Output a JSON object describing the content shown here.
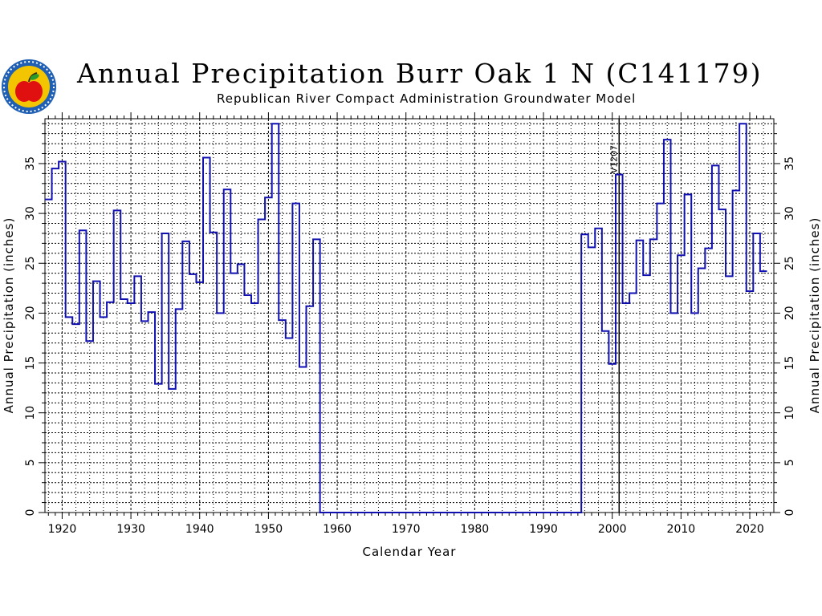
{
  "header": {
    "title": "Annual Precipitation Burr Oak 1 N (C141179)",
    "subtitle": "Republican River Compact Administration Groundwater Model"
  },
  "colors": {
    "series": "#1010b0",
    "grid": "#000000",
    "logo_ring": "#1f5fb4",
    "logo_inner": "#f2c500",
    "logo_apple": "#e01010"
  },
  "logo": {
    "icon": "apple-seal-logo"
  },
  "chart_data": {
    "type": "line",
    "step": true,
    "title": "Annual Precipitation Burr Oak 1 N (C141179)",
    "subtitle": "Republican River Compact Administration Groundwater Model",
    "xlabel": "Calendar Year",
    "ylabel": "Annual Precipitation (inches)",
    "xlim": [
      1917.5,
      2023.5
    ],
    "ylim": [
      0,
      39.5
    ],
    "grid": true,
    "x_ticks": [
      1920,
      1930,
      1940,
      1950,
      1960,
      1970,
      1980,
      1990,
      2000,
      2010,
      2020
    ],
    "y_ticks": [
      0,
      5,
      10,
      15,
      20,
      25,
      30,
      35
    ],
    "annotation": {
      "label": "V1207",
      "x": 2001
    },
    "series": [
      {
        "x": [
          1918,
          1919,
          1920,
          1921,
          1922,
          1923,
          1924,
          1925,
          1926,
          1927,
          1928,
          1929,
          1930,
          1931,
          1932,
          1933,
          1934,
          1935,
          1936,
          1937,
          1938,
          1939,
          1940,
          1941,
          1942,
          1943,
          1944,
          1945,
          1946,
          1947,
          1948,
          1949,
          1950,
          1951,
          1952,
          1953,
          1954,
          1955,
          1956,
          1957,
          1958,
          1959,
          1960,
          1961,
          1962,
          1963,
          1964,
          1965,
          1966,
          1967,
          1968,
          1969,
          1970,
          1971,
          1972,
          1973,
          1974,
          1975,
          1976,
          1977,
          1978,
          1979,
          1980,
          1981,
          1982,
          1983,
          1984,
          1985,
          1986,
          1987,
          1988,
          1989,
          1990,
          1991,
          1992,
          1993,
          1994,
          1995,
          1996,
          1997,
          1998,
          1999,
          2000,
          2001,
          2002,
          2003,
          2004,
          2005,
          2006,
          2007,
          2008,
          2009,
          2010,
          2011,
          2012,
          2013,
          2014,
          2015,
          2016,
          2017,
          2018,
          2019,
          2020,
          2021,
          2022
        ],
        "values": [
          31.4,
          34.5,
          35.2,
          19.6,
          18.9,
          28.3,
          17.2,
          23.2,
          19.6,
          21.1,
          30.3,
          21.4,
          21.0,
          23.7,
          19.2,
          20.1,
          12.9,
          28.0,
          12.4,
          20.4,
          27.2,
          23.9,
          23.1,
          35.6,
          28.1,
          20.0,
          32.4,
          24.0,
          24.9,
          21.8,
          21.0,
          29.4,
          31.6,
          39.0,
          19.3,
          17.5,
          31.0,
          14.6,
          20.7,
          27.4,
          0,
          0,
          0,
          0,
          0,
          0,
          0,
          0,
          0,
          0,
          0,
          0,
          0,
          0,
          0,
          0,
          0,
          0,
          0,
          0,
          0,
          0,
          0,
          0,
          0,
          0,
          0,
          0,
          0,
          0,
          0,
          0,
          0,
          0,
          0,
          0,
          0,
          0,
          27.9,
          26.6,
          28.5,
          18.2,
          14.9,
          33.9,
          21.0,
          22.0,
          27.3,
          23.8,
          27.4,
          31.0,
          37.4,
          20.0,
          25.8,
          31.9,
          20.0,
          24.5,
          26.5,
          34.8,
          30.4,
          23.7,
          32.3,
          39.0,
          22.2,
          28.0,
          24.2
        ]
      }
    ]
  }
}
